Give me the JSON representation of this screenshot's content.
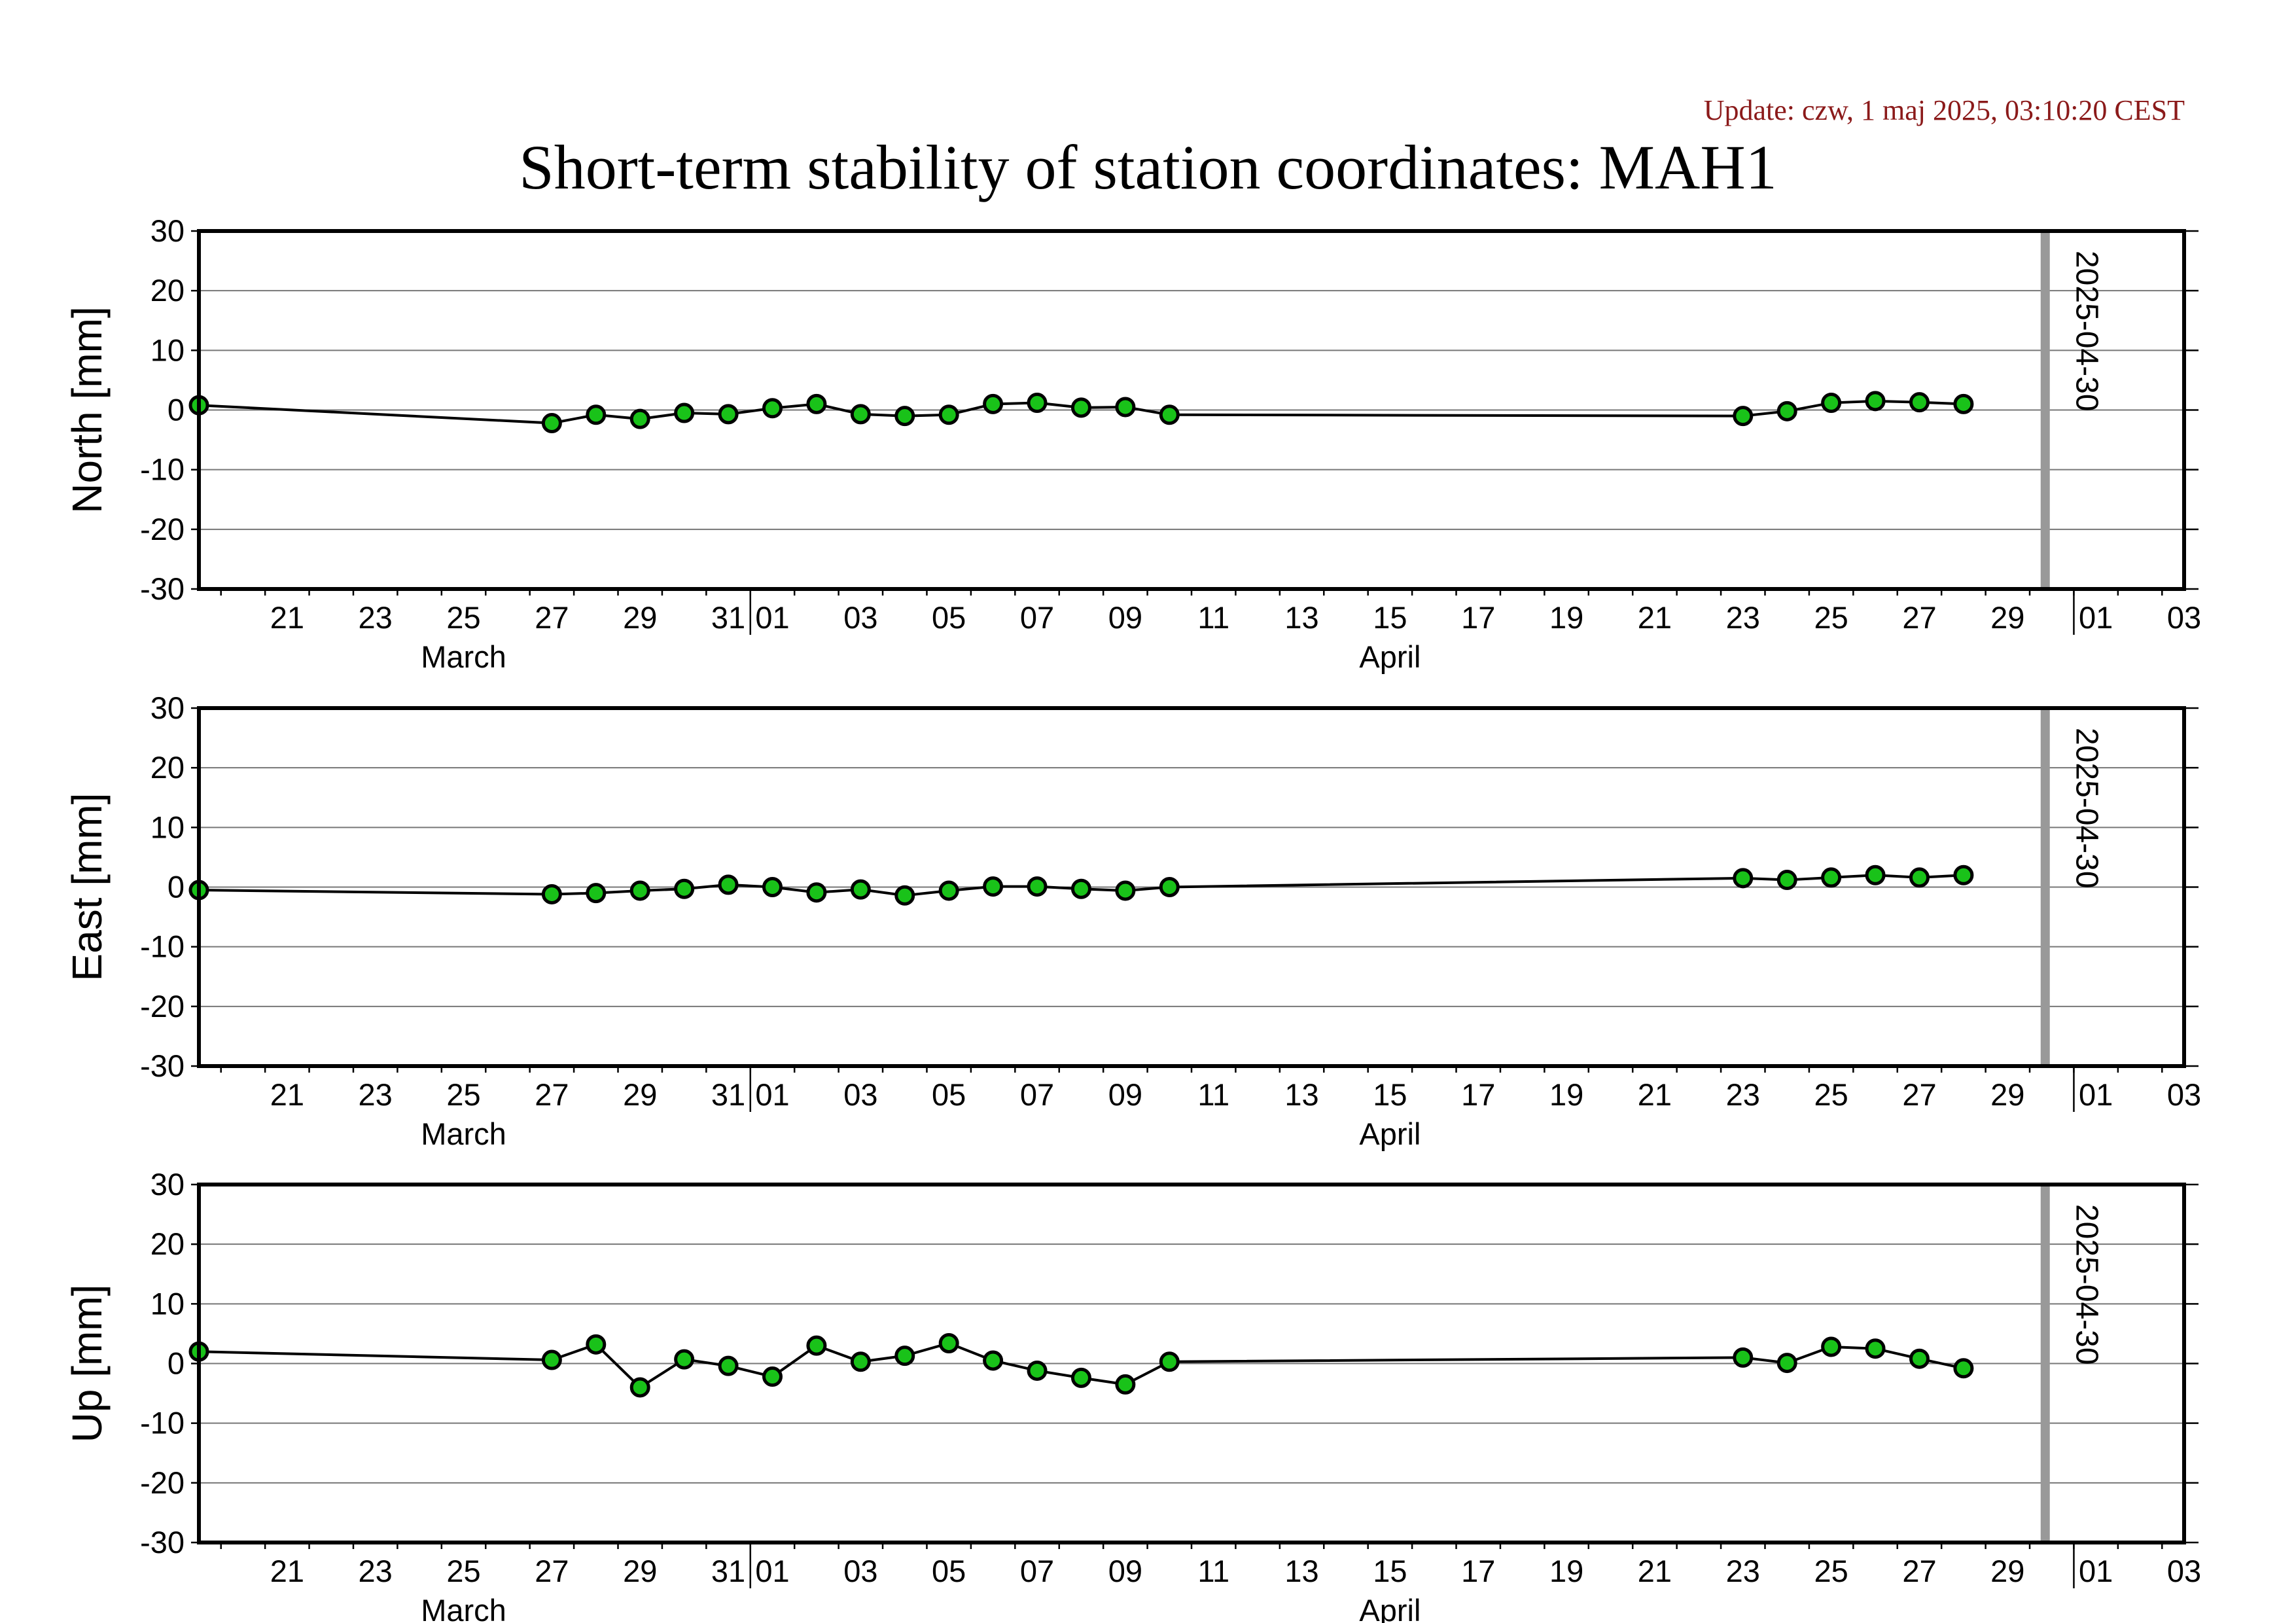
{
  "header": {
    "update": "Update: czw, 1 maj 2025, 03:10:20 CEST",
    "title": "Short-term stability of station coordinates: MAH1"
  },
  "colors": {
    "marker_fill": "#19c219",
    "update_text": "#8b1a1a",
    "reference_line": "#999999"
  },
  "chart_data": [
    {
      "type": "line",
      "ylabel": "North [mm]",
      "ylim": [
        -30,
        30
      ],
      "yticks": [
        -30,
        -20,
        -10,
        0,
        10,
        20,
        30
      ],
      "xlim": [
        "2025-03-19T12:00",
        "2025-05-03T12:00"
      ],
      "xtick_labels": [
        "21",
        "23",
        "25",
        "27",
        "29",
        "31",
        "01",
        "03",
        "05",
        "07",
        "09",
        "11",
        "13",
        "15",
        "17",
        "19",
        "21",
        "23",
        "25",
        "27",
        "29",
        "01",
        "03"
      ],
      "month_labels": [
        "March",
        "April"
      ],
      "marker": {
        "date": "2025-04-30",
        "label": "2025-04-30"
      },
      "grid": true,
      "x": [
        "2025-03-19T12:00",
        "2025-03-27T12:00",
        "2025-03-28T12:00",
        "2025-03-29T12:00",
        "2025-03-30T12:00",
        "2025-03-31T12:00",
        "2025-04-01T12:00",
        "2025-04-02T12:00",
        "2025-04-03T12:00",
        "2025-04-04T12:00",
        "2025-04-05T12:00",
        "2025-04-06T12:00",
        "2025-04-07T12:00",
        "2025-04-08T12:00",
        "2025-04-09T12:00",
        "2025-04-10T12:00",
        "2025-04-23T12:00",
        "2025-04-24T12:00",
        "2025-04-25T12:00",
        "2025-04-26T12:00",
        "2025-04-27T12:00",
        "2025-04-28T12:00"
      ],
      "y": [
        0.8,
        -2.2,
        -0.8,
        -1.5,
        -0.5,
        -0.7,
        0.3,
        1.0,
        -0.7,
        -1.0,
        -0.8,
        1.0,
        1.2,
        0.4,
        0.5,
        -0.8,
        -1.0,
        -0.2,
        1.2,
        1.5,
        1.3,
        1.0
      ]
    },
    {
      "type": "line",
      "ylabel": "East [mm]",
      "ylim": [
        -30,
        30
      ],
      "yticks": [
        -30,
        -20,
        -10,
        0,
        10,
        20,
        30
      ],
      "xlim": [
        "2025-03-19T12:00",
        "2025-05-03T12:00"
      ],
      "xtick_labels": [
        "21",
        "23",
        "25",
        "27",
        "29",
        "31",
        "01",
        "03",
        "05",
        "07",
        "09",
        "11",
        "13",
        "15",
        "17",
        "19",
        "21",
        "23",
        "25",
        "27",
        "29",
        "01",
        "03"
      ],
      "month_labels": [
        "March",
        "April"
      ],
      "marker": {
        "date": "2025-04-30",
        "label": "2025-04-30"
      },
      "grid": true,
      "x": [
        "2025-03-19T12:00",
        "2025-03-27T12:00",
        "2025-03-28T12:00",
        "2025-03-29T12:00",
        "2025-03-30T12:00",
        "2025-03-31T12:00",
        "2025-04-01T12:00",
        "2025-04-02T12:00",
        "2025-04-03T12:00",
        "2025-04-04T12:00",
        "2025-04-05T12:00",
        "2025-04-06T12:00",
        "2025-04-07T12:00",
        "2025-04-08T12:00",
        "2025-04-09T12:00",
        "2025-04-10T12:00",
        "2025-04-23T12:00",
        "2025-04-24T12:00",
        "2025-04-25T12:00",
        "2025-04-26T12:00",
        "2025-04-27T12:00",
        "2025-04-28T12:00"
      ],
      "y": [
        -0.5,
        -1.2,
        -1.0,
        -0.6,
        -0.3,
        0.4,
        0.0,
        -0.9,
        -0.4,
        -1.4,
        -0.6,
        0.1,
        0.1,
        -0.3,
        -0.6,
        0.0,
        1.5,
        1.2,
        1.6,
        2.0,
        1.6,
        2.0
      ]
    },
    {
      "type": "line",
      "ylabel": "Up [mm]",
      "ylim": [
        -30,
        30
      ],
      "yticks": [
        -30,
        -20,
        -10,
        0,
        10,
        20,
        30
      ],
      "xlim": [
        "2025-03-19T12:00",
        "2025-05-03T12:00"
      ],
      "xtick_labels": [
        "21",
        "23",
        "25",
        "27",
        "29",
        "31",
        "01",
        "03",
        "05",
        "07",
        "09",
        "11",
        "13",
        "15",
        "17",
        "19",
        "21",
        "23",
        "25",
        "27",
        "29",
        "01",
        "03"
      ],
      "month_labels": [
        "March",
        "April"
      ],
      "marker": {
        "date": "2025-04-30",
        "label": "2025-04-30"
      },
      "grid": true,
      "x": [
        "2025-03-19T12:00",
        "2025-03-27T12:00",
        "2025-03-28T12:00",
        "2025-03-29T12:00",
        "2025-03-30T12:00",
        "2025-03-31T12:00",
        "2025-04-01T12:00",
        "2025-04-02T12:00",
        "2025-04-03T12:00",
        "2025-04-04T12:00",
        "2025-04-05T12:00",
        "2025-04-06T12:00",
        "2025-04-07T12:00",
        "2025-04-08T12:00",
        "2025-04-09T12:00",
        "2025-04-10T12:00",
        "2025-04-23T12:00",
        "2025-04-24T12:00",
        "2025-04-25T12:00",
        "2025-04-26T12:00",
        "2025-04-27T12:00",
        "2025-04-28T12:00"
      ],
      "y": [
        2.0,
        0.6,
        3.2,
        -4.0,
        0.7,
        -0.4,
        -2.2,
        3.0,
        0.3,
        1.3,
        3.4,
        0.5,
        -1.2,
        -2.4,
        -3.5,
        0.3,
        1.0,
        0.1,
        2.8,
        2.5,
        0.8,
        -0.8
      ]
    }
  ]
}
